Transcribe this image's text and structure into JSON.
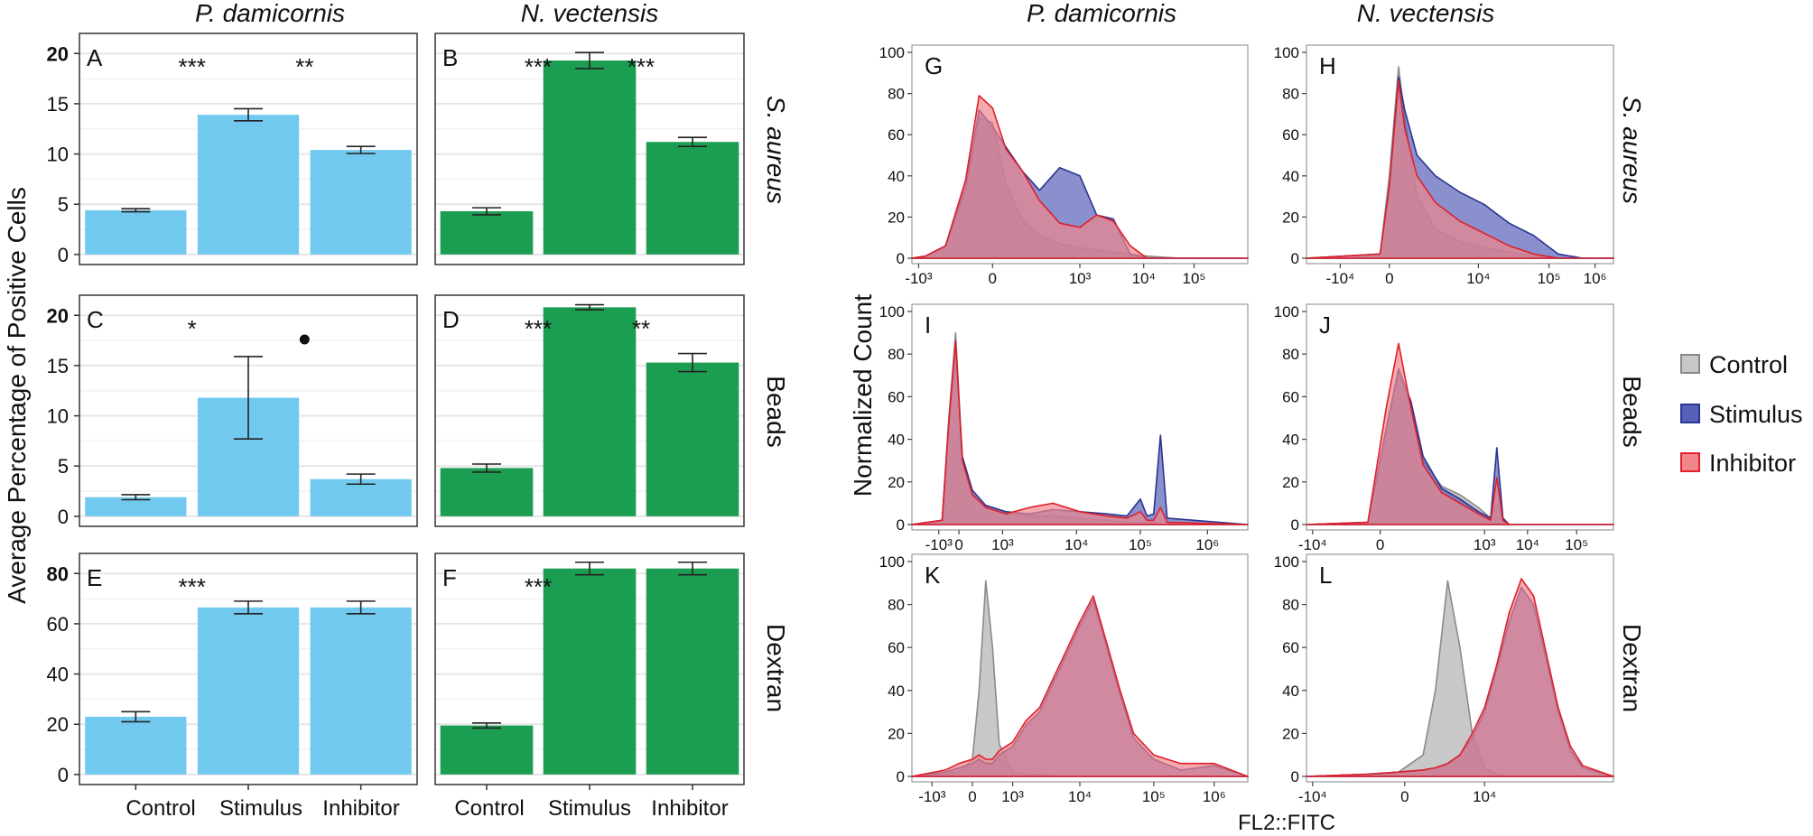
{
  "colors": {
    "pd_bar": "#72c9ef",
    "nv_bar": "#1c9e52",
    "control": "#c8c8c8",
    "stimulus": "#5861b8",
    "inhibitor": "#f0868c",
    "overlap": "#7f3a9a"
  },
  "left": {
    "species": [
      "P. damicornis",
      "N. vectensis"
    ],
    "ylabel": "Average Percentage of Positive Cells",
    "categories": [
      "Control",
      "Stimulus",
      "Inhibitor"
    ]
  },
  "right": {
    "species": [
      "P. damicornis",
      "N. vectensis"
    ],
    "ylabel": "Normalized Count",
    "xlabel": "FL2::FITC"
  },
  "rows": [
    "S. aureus",
    "Beads",
    "Dextran"
  ],
  "legend": [
    "Control",
    "Stimulus",
    "Inhibitor"
  ],
  "chart_data": [
    {
      "panel": "A",
      "type": "bar",
      "species": "P. damicornis",
      "stimulus": "S. aureus",
      "categories": [
        "Control",
        "Stimulus",
        "Inhibitor"
      ],
      "values": [
        4.4,
        13.9,
        10.4
      ],
      "err": [
        0.15,
        0.6,
        0.35
      ],
      "ylim": [
        -1,
        22
      ],
      "yticks": [
        0,
        5,
        10,
        15,
        20
      ],
      "sig": [
        "",
        "***",
        "**"
      ]
    },
    {
      "panel": "B",
      "type": "bar",
      "species": "N. vectensis",
      "stimulus": "S. aureus",
      "categories": [
        "Control",
        "Stimulus",
        "Inhibitor"
      ],
      "values": [
        4.3,
        19.3,
        11.2
      ],
      "err": [
        0.35,
        0.8,
        0.45
      ],
      "ylim": [
        -1,
        22
      ],
      "sig": [
        "",
        "***",
        "***"
      ]
    },
    {
      "panel": "C",
      "type": "bar",
      "species": "P. damicornis",
      "stimulus": "Beads",
      "categories": [
        "Control",
        "Stimulus",
        "Inhibitor"
      ],
      "values": [
        1.9,
        11.8,
        3.7
      ],
      "err": [
        0.25,
        4.1,
        0.5
      ],
      "ylim": [
        -1,
        22
      ],
      "yticks": [
        0,
        5,
        10,
        15,
        20
      ],
      "sig": [
        "",
        "*",
        "•"
      ]
    },
    {
      "panel": "D",
      "type": "bar",
      "species": "N. vectensis",
      "stimulus": "Beads",
      "categories": [
        "Control",
        "Stimulus",
        "Inhibitor"
      ],
      "values": [
        4.8,
        20.8,
        15.3
      ],
      "err": [
        0.4,
        0.25,
        0.9
      ],
      "ylim": [
        -1,
        22
      ],
      "sig": [
        "",
        "***",
        "**"
      ]
    },
    {
      "panel": "E",
      "type": "bar",
      "species": "P. damicornis",
      "stimulus": "Dextran",
      "categories": [
        "Control",
        "Stimulus",
        "Inhibitor"
      ],
      "values": [
        23.0,
        66.5,
        66.5
      ],
      "err": [
        2.0,
        2.5,
        2.5
      ],
      "ylim": [
        -4,
        88
      ],
      "yticks": [
        0,
        20,
        40,
        60,
        80
      ],
      "sig": [
        "",
        "***",
        ""
      ]
    },
    {
      "panel": "F",
      "type": "bar",
      "species": "N. vectensis",
      "stimulus": "Dextran",
      "categories": [
        "Control",
        "Stimulus",
        "Inhibitor"
      ],
      "values": [
        19.5,
        82.0,
        82.0
      ],
      "err": [
        1.0,
        2.5,
        2.5
      ],
      "ylim": [
        -4,
        88
      ],
      "sig": [
        "",
        "***",
        ""
      ]
    },
    {
      "panel": "G",
      "type": "area",
      "species": "P. damicornis",
      "stimulus": "S. aureus",
      "ylim": [
        0,
        100
      ],
      "yticks": [
        0,
        20,
        40,
        60,
        80,
        100
      ],
      "xticks": [
        "-10³",
        "0",
        "10³",
        "10⁴",
        "10⁵"
      ],
      "x": [
        0,
        0.04,
        0.1,
        0.16,
        0.2,
        0.24,
        0.28,
        0.33,
        0.38,
        0.44,
        0.5,
        0.55,
        0.6,
        0.65,
        0.7,
        0.75,
        0.8,
        0.86,
        0.92,
        1
      ],
      "series": [
        {
          "name": "Control",
          "values": [
            0,
            1,
            5,
            32,
            68,
            66,
            36,
            18,
            11,
            7,
            5,
            4,
            3,
            2,
            1,
            0.5,
            0,
            0,
            0,
            0
          ]
        },
        {
          "name": "Stimulus",
          "values": [
            0,
            1,
            6,
            35,
            72,
            64,
            54,
            42,
            33,
            44,
            40,
            21,
            19,
            2,
            0,
            0,
            0,
            0,
            0,
            0
          ]
        },
        {
          "name": "Inhibitor",
          "values": [
            0,
            1,
            6,
            38,
            79,
            73,
            53,
            42,
            28,
            17,
            15,
            21,
            18,
            6,
            0,
            0,
            0,
            0,
            0,
            0
          ]
        }
      ]
    },
    {
      "panel": "H",
      "type": "area",
      "species": "N. vectensis",
      "stimulus": "S. aureus",
      "ylim": [
        0,
        100
      ],
      "yticks": [
        0,
        20,
        40,
        60,
        80,
        100
      ],
      "xticks": [
        "-10⁴",
        "0",
        "10⁴",
        "10⁵",
        "10⁶"
      ],
      "x": [
        0,
        0.24,
        0.27,
        0.3,
        0.32,
        0.36,
        0.42,
        0.5,
        0.58,
        0.66,
        0.74,
        0.82,
        0.9,
        1
      ],
      "series": [
        {
          "name": "Control",
          "values": [
            0,
            2,
            40,
            93,
            68,
            30,
            14,
            8,
            5,
            3,
            1,
            0,
            0,
            0
          ]
        },
        {
          "name": "Stimulus",
          "values": [
            0,
            2,
            35,
            88,
            72,
            50,
            40,
            32,
            26,
            17,
            11,
            2,
            0,
            0
          ]
        },
        {
          "name": "Inhibitor",
          "values": [
            0,
            2,
            35,
            86,
            63,
            40,
            27,
            18,
            12,
            6,
            2,
            0,
            0,
            0
          ]
        }
      ]
    },
    {
      "panel": "I",
      "type": "area",
      "species": "P. damicornis",
      "stimulus": "Beads",
      "ylim": [
        0,
        100
      ],
      "yticks": [
        0,
        20,
        40,
        60,
        80,
        100
      ],
      "xticks": [
        "-10³",
        "0",
        "10³",
        "10⁴",
        "10⁵",
        "10⁶"
      ],
      "x": [
        0,
        0.09,
        0.11,
        0.13,
        0.15,
        0.18,
        0.22,
        0.28,
        0.35,
        0.42,
        0.5,
        0.58,
        0.64,
        0.68,
        0.7,
        0.72,
        0.74,
        0.76,
        1
      ],
      "series": [
        {
          "name": "Control",
          "values": [
            0,
            2,
            50,
            90,
            30,
            14,
            8,
            5,
            4,
            4,
            3,
            2,
            1,
            1,
            1,
            1,
            0,
            0,
            0
          ]
        },
        {
          "name": "Stimulus",
          "values": [
            0,
            2,
            48,
            85,
            32,
            16,
            9,
            6,
            5,
            7,
            6,
            5,
            4,
            12,
            4,
            5,
            42,
            3,
            0
          ]
        },
        {
          "name": "Inhibitor",
          "values": [
            0,
            2,
            48,
            86,
            30,
            14,
            8,
            5,
            8,
            10,
            6,
            4,
            3,
            6,
            2,
            2,
            8,
            1,
            0
          ]
        }
      ]
    },
    {
      "panel": "J",
      "type": "area",
      "species": "N. vectensis",
      "stimulus": "Beads",
      "ylim": [
        0,
        100
      ],
      "yticks": [
        0,
        20,
        40,
        60,
        80,
        100
      ],
      "xticks": [
        "-10⁴",
        "0",
        "10³",
        "10⁴",
        "10⁵"
      ],
      "x": [
        0,
        0.2,
        0.26,
        0.3,
        0.34,
        0.38,
        0.44,
        0.5,
        0.56,
        0.6,
        0.62,
        0.64,
        0.66,
        1
      ],
      "series": [
        {
          "name": "Control",
          "values": [
            0,
            1,
            45,
            72,
            55,
            30,
            18,
            14,
            8,
            3,
            10,
            3,
            0,
            0
          ]
        },
        {
          "name": "Stimulus",
          "values": [
            0,
            1,
            45,
            73,
            58,
            32,
            17,
            12,
            6,
            3,
            36,
            3,
            0,
            0
          ]
        },
        {
          "name": "Inhibitor",
          "values": [
            0,
            1,
            55,
            85,
            55,
            28,
            15,
            10,
            5,
            2,
            22,
            2,
            0,
            0
          ]
        }
      ]
    },
    {
      "panel": "K",
      "type": "area",
      "species": "P. damicornis",
      "stimulus": "Dextran",
      "ylim": [
        0,
        100
      ],
      "yticks": [
        0,
        20,
        40,
        60,
        80,
        100
      ],
      "xticks": [
        "-10³",
        "0",
        "10³",
        "10⁴",
        "10⁵",
        "10⁶"
      ],
      "x": [
        0,
        0.1,
        0.14,
        0.18,
        0.2,
        0.22,
        0.24,
        0.26,
        0.3,
        0.34,
        0.38,
        0.44,
        0.5,
        0.54,
        0.58,
        0.62,
        0.66,
        0.72,
        0.8,
        0.9,
        1
      ],
      "series": [
        {
          "name": "Control",
          "values": [
            0,
            1,
            2,
            8,
            40,
            91,
            60,
            15,
            2,
            1,
            1,
            0,
            0,
            0,
            0,
            0,
            0,
            0,
            0,
            0,
            0
          ]
        },
        {
          "name": "Stimulus",
          "values": [
            0,
            2,
            4,
            6,
            8,
            6,
            6,
            10,
            14,
            24,
            30,
            50,
            70,
            82,
            60,
            38,
            18,
            8,
            3,
            5,
            0
          ]
        },
        {
          "name": "Inhibitor",
          "values": [
            0,
            3,
            6,
            8,
            10,
            8,
            8,
            12,
            16,
            26,
            32,
            52,
            72,
            84,
            62,
            40,
            20,
            10,
            6,
            6,
            0
          ]
        }
      ]
    },
    {
      "panel": "L",
      "type": "area",
      "species": "N. vectensis",
      "stimulus": "Dextran",
      "ylim": [
        0,
        100
      ],
      "yticks": [
        0,
        20,
        40,
        60,
        80,
        100
      ],
      "xticks": [
        "-10⁴",
        "0",
        "10⁴"
      ],
      "x": [
        0,
        0.2,
        0.3,
        0.38,
        0.42,
        0.46,
        0.5,
        0.54,
        0.58,
        0.62,
        0.66,
        0.7,
        0.74,
        0.78,
        0.82,
        0.86,
        0.9,
        1
      ],
      "series": [
        {
          "name": "Control",
          "values": [
            0,
            1,
            2,
            10,
            40,
            91,
            60,
            20,
            4,
            1,
            0,
            0,
            0,
            0,
            0,
            0,
            0,
            0
          ]
        },
        {
          "name": "Stimulus",
          "values": [
            0,
            1,
            2,
            3,
            4,
            6,
            10,
            18,
            30,
            50,
            72,
            88,
            80,
            55,
            30,
            12,
            4,
            0
          ]
        },
        {
          "name": "Inhibitor",
          "values": [
            0,
            1,
            2,
            3,
            4,
            6,
            10,
            20,
            32,
            52,
            76,
            92,
            84,
            58,
            32,
            14,
            5,
            0
          ]
        }
      ]
    }
  ]
}
